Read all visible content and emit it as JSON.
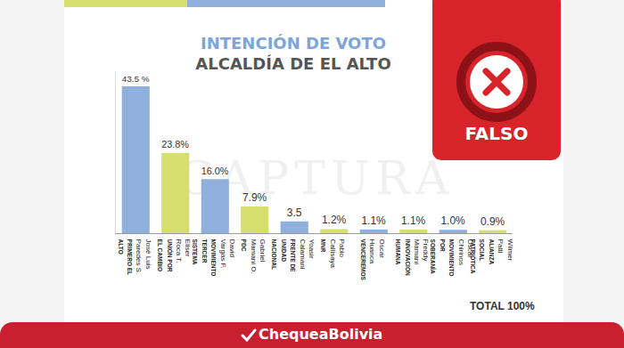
{
  "chart_data": {
    "type": "bar",
    "title": "INTENCIÓN DE VOTO",
    "subtitle": "ALCALDÍA DE EL ALTO",
    "categories": [
      "José Luis Paredes S.",
      "Eliser Roca T.",
      "David Vargas F.",
      "Gabriel Mamani O.",
      "Yoasir Calamani",
      "Pablo Callisaya",
      "Oscar Huanca",
      "Freddy Mamani",
      "Oscar Chirinos",
      "Wilmer Patti"
    ],
    "parties": [
      "PRIMERO EL ALTO",
      "UNIÓN POR EL CAMBIO",
      "MOVIMIENTO TERCER SISTEMA",
      "PDC",
      "FRENTE DE UNIDAD NACIONAL",
      "MNR",
      "VENCEREMOS",
      "INNOVACIÓN HUMANA",
      "MOVIMIENTO POR SOBERANÍA",
      "ALIANZA SOCIAL PATRIÓTICA"
    ],
    "values": [
      43.5,
      23.8,
      16.0,
      7.9,
      3.5,
      1.2,
      1.1,
      1.1,
      1.0,
      0.9
    ],
    "value_labels": [
      "43.5 %",
      "23.8%",
      "16.0%",
      "7.9%",
      "3.5",
      "1.2%",
      "1.1%",
      "1.1%",
      "1.0%",
      "0.9%"
    ],
    "colors": [
      "#8fb0dc",
      "#d6df6e",
      "#8fb0dc",
      "#d6df6e",
      "#8fb0dc",
      "#d6df6e",
      "#8fb0dc",
      "#d6df6e",
      "#8fb0dc",
      "#d6df6e"
    ],
    "ylim": [
      0,
      48
    ],
    "data_labels": true,
    "tick_labels": "x",
    "grid": false,
    "annotations": [
      "TOTAL 100%"
    ]
  },
  "watermark": "CAPTURA",
  "stamp": "FALSO",
  "footer": "ChequeaBolivia"
}
